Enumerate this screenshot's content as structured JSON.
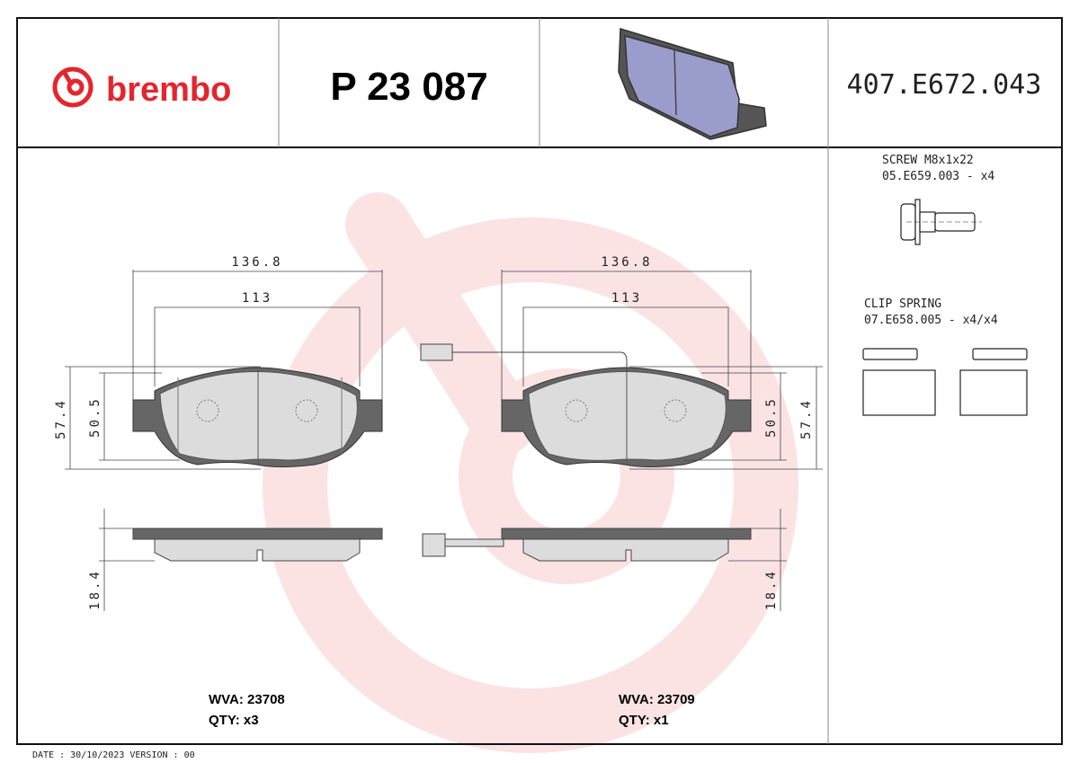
{
  "header": {
    "brand": "brembo",
    "part_number": "P 23 087",
    "reference_code": "407.E672.043"
  },
  "dimensions": {
    "left": {
      "overall_width": "136.8",
      "inner_width": "113",
      "overall_height": "57.4",
      "inner_height": "50.5",
      "thickness": "18.4"
    },
    "right": {
      "overall_width": "136.8",
      "inner_width": "113",
      "overall_height": "57.4",
      "inner_height": "50.5",
      "thickness": "18.4"
    }
  },
  "accessories": {
    "screw": {
      "title": "SCREW M8x1x22",
      "code": "05.E659.003 - x4"
    },
    "clip": {
      "title": "CLIP SPRING",
      "code": "07.E658.005 - x4/x4"
    }
  },
  "pads": {
    "left": {
      "wva": "WVA: 23708",
      "qty": "QTY: x3"
    },
    "right": {
      "wva": "WVA: 23709",
      "qty": "QTY: x1"
    }
  },
  "footer": {
    "date_version": "DATE : 30/10/2023 VERSION : 00"
  },
  "colors": {
    "brand_red": "#e3262e",
    "backing_plate": "#666666",
    "friction": "#dcdcdc",
    "render_blue": "#9a9ccc"
  }
}
